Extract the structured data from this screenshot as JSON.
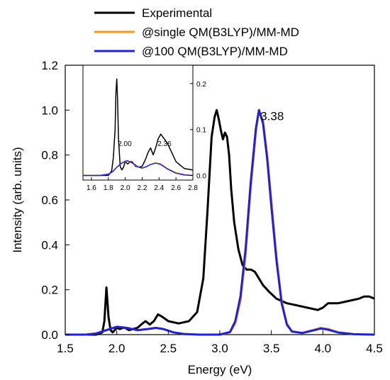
{
  "chart_data": {
    "type": "line",
    "title": "",
    "xlabel": "Energy (eV)",
    "ylabel": "Intensity (arb. units)",
    "xlim": [
      1.5,
      4.5
    ],
    "ylim": [
      0.0,
      1.2
    ],
    "xticks": [
      "1.5",
      "2.0",
      "2.5",
      "3.0",
      "3.5",
      "4.0",
      "4.5"
    ],
    "yticks": [
      "0.0",
      "0.2",
      "0.4",
      "0.6",
      "0.8",
      "1.0",
      "1.2"
    ],
    "grid": false,
    "legend_position": "top",
    "series": [
      {
        "name": "Experimental",
        "color": "#000000",
        "x": [
          1.5,
          1.8,
          1.86,
          1.88,
          1.9,
          1.92,
          1.94,
          1.96,
          1.98,
          2.0,
          2.03,
          2.06,
          2.08,
          2.12,
          2.16,
          2.2,
          2.25,
          2.28,
          2.32,
          2.36,
          2.4,
          2.44,
          2.5,
          2.6,
          2.7,
          2.78,
          2.84,
          2.88,
          2.92,
          2.95,
          2.97,
          2.99,
          3.01,
          3.03,
          3.05,
          3.07,
          3.09,
          3.11,
          3.14,
          3.18,
          3.22,
          3.26,
          3.3,
          3.34,
          3.38,
          3.42,
          3.48,
          3.55,
          3.65,
          3.75,
          3.85,
          3.95,
          4.0,
          4.05,
          4.15,
          4.25,
          4.35,
          4.4,
          4.45,
          4.5
        ],
        "y": [
          0.0,
          0.0,
          0.01,
          0.06,
          0.21,
          0.08,
          0.02,
          0.01,
          0.02,
          0.03,
          0.025,
          0.03,
          0.03,
          0.02,
          0.025,
          0.03,
          0.05,
          0.06,
          0.045,
          0.06,
          0.09,
          0.08,
          0.06,
          0.05,
          0.06,
          0.1,
          0.25,
          0.55,
          0.88,
          0.97,
          1.0,
          0.96,
          0.91,
          0.87,
          0.9,
          0.88,
          0.8,
          0.65,
          0.5,
          0.38,
          0.31,
          0.29,
          0.29,
          0.28,
          0.25,
          0.22,
          0.19,
          0.16,
          0.14,
          0.13,
          0.12,
          0.11,
          0.12,
          0.14,
          0.14,
          0.15,
          0.16,
          0.17,
          0.17,
          0.16
        ]
      },
      {
        "name": "@single QM(B3LYP)/MM-MD",
        "color": "#F7941D",
        "x": [
          1.5,
          1.7,
          1.8,
          1.9,
          2.0,
          2.1,
          2.2,
          2.3,
          2.38,
          2.45,
          2.55,
          2.65,
          2.8,
          3.0,
          3.1,
          3.15,
          3.2,
          3.25,
          3.3,
          3.35,
          3.38,
          3.42,
          3.46,
          3.5,
          3.55,
          3.6,
          3.65,
          3.7,
          3.8,
          3.9,
          3.98,
          4.05,
          4.15,
          4.3,
          4.5
        ],
        "y": [
          0.0,
          0.0,
          0.005,
          0.02,
          0.035,
          0.03,
          0.02,
          0.025,
          0.03,
          0.025,
          0.01,
          0.003,
          0.0,
          0.0,
          0.01,
          0.05,
          0.15,
          0.35,
          0.65,
          0.9,
          1.0,
          0.95,
          0.8,
          0.6,
          0.35,
          0.15,
          0.05,
          0.015,
          0.008,
          0.02,
          0.03,
          0.025,
          0.01,
          0.002,
          0.0
        ]
      },
      {
        "name": "@100 QM(B3LYP)/MM-MD",
        "color": "#2222CC",
        "x": [
          1.5,
          1.7,
          1.8,
          1.9,
          2.0,
          2.1,
          2.2,
          2.3,
          2.38,
          2.45,
          2.55,
          2.65,
          2.8,
          3.0,
          3.1,
          3.15,
          3.2,
          3.25,
          3.3,
          3.35,
          3.38,
          3.42,
          3.46,
          3.5,
          3.55,
          3.6,
          3.65,
          3.7,
          3.8,
          3.9,
          3.98,
          4.05,
          4.15,
          4.3,
          4.5
        ],
        "y": [
          0.0,
          0.0,
          0.005,
          0.02,
          0.035,
          0.03,
          0.02,
          0.025,
          0.03,
          0.025,
          0.01,
          0.003,
          0.0,
          0.0,
          0.012,
          0.06,
          0.17,
          0.38,
          0.68,
          0.92,
          1.0,
          0.94,
          0.78,
          0.57,
          0.33,
          0.14,
          0.045,
          0.014,
          0.007,
          0.018,
          0.027,
          0.022,
          0.009,
          0.002,
          0.0
        ]
      }
    ],
    "annotations": [
      {
        "text": "3.38",
        "x": 3.38,
        "y": 1.0,
        "color": "#F7941D"
      }
    ],
    "inset": {
      "type": "line",
      "xlim": [
        1.5,
        2.8
      ],
      "ylim": [
        -0.01,
        0.24
      ],
      "xticks": [
        "1.6",
        "1.8",
        "2.0",
        "2.2",
        "2.4",
        "2.6",
        "2.8"
      ],
      "yticks": [
        "0.0",
        "0.1",
        "0.2"
      ],
      "annotations": [
        {
          "text": "2.00",
          "x": 2.03,
          "y": 0.055,
          "color": "#F7941D"
        },
        {
          "text": "2.36",
          "x": 2.5,
          "y": 0.055,
          "color": "#F7941D"
        }
      ],
      "series": [
        {
          "color": "#000000",
          "x": [
            1.5,
            1.8,
            1.84,
            1.86,
            1.88,
            1.89,
            1.9,
            1.91,
            1.92,
            1.94,
            1.96,
            1.98,
            2.0,
            2.03,
            2.06,
            2.08,
            2.12,
            2.16,
            2.2,
            2.24,
            2.27,
            2.3,
            2.33,
            2.36,
            2.39,
            2.42,
            2.46,
            2.5,
            2.55,
            2.6,
            2.7,
            2.8
          ],
          "y": [
            0.0,
            0.0,
            0.01,
            0.04,
            0.1,
            0.18,
            0.21,
            0.16,
            0.08,
            0.02,
            0.012,
            0.018,
            0.03,
            0.025,
            0.03,
            0.03,
            0.02,
            0.018,
            0.02,
            0.035,
            0.05,
            0.06,
            0.045,
            0.06,
            0.08,
            0.09,
            0.08,
            0.07,
            0.05,
            0.03,
            0.015,
            0.012
          ]
        },
        {
          "color": "#F7941D",
          "x": [
            1.5,
            1.7,
            1.8,
            1.85,
            1.9,
            1.95,
            2.0,
            2.03,
            2.08,
            2.15,
            2.2,
            2.25,
            2.3,
            2.36,
            2.42,
            2.5,
            2.6,
            2.7,
            2.8
          ],
          "y": [
            0.0,
            0.0,
            0.003,
            0.008,
            0.018,
            0.026,
            0.03,
            0.031,
            0.027,
            0.018,
            0.016,
            0.019,
            0.024,
            0.027,
            0.025,
            0.015,
            0.006,
            0.002,
            0.0
          ]
        },
        {
          "color": "#2222CC",
          "x": [
            1.5,
            1.7,
            1.8,
            1.85,
            1.9,
            1.95,
            2.0,
            2.03,
            2.08,
            2.15,
            2.2,
            2.25,
            2.3,
            2.36,
            2.42,
            2.5,
            2.6,
            2.7,
            2.8
          ],
          "y": [
            0.0,
            0.0,
            0.003,
            0.008,
            0.018,
            0.026,
            0.031,
            0.032,
            0.028,
            0.019,
            0.016,
            0.019,
            0.024,
            0.027,
            0.024,
            0.014,
            0.005,
            0.001,
            0.0
          ]
        }
      ]
    }
  }
}
